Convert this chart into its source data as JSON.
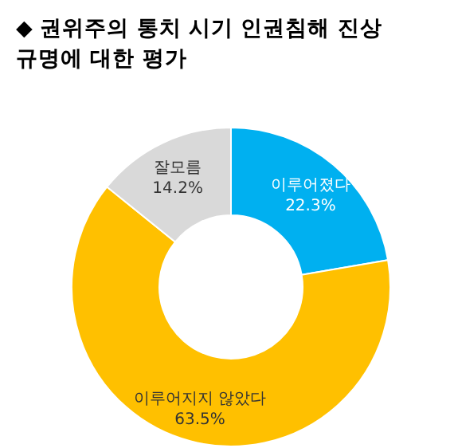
{
  "chart_data": {
    "type": "donut",
    "title": "◆ 권위주의 통치 시기 인권침해 진상 규명에 대한 평가",
    "categories": [
      "이루어졌다",
      "이루어지지 않았다",
      "잘모름"
    ],
    "values": [
      22.3,
      63.5,
      14.2
    ],
    "colors": [
      "#00b0f0",
      "#ffc000",
      "#d9d9d9"
    ],
    "value_labels": [
      "22.3%",
      "63.5%",
      "14.2%"
    ]
  }
}
